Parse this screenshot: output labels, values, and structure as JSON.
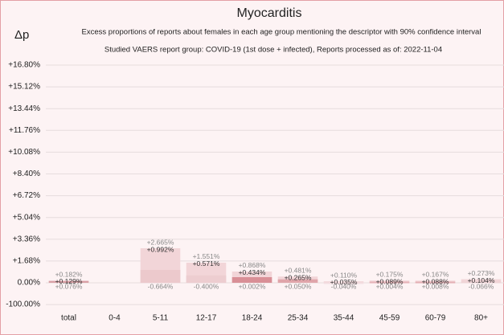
{
  "chart_data": {
    "type": "interval_bar",
    "title": "Myocarditis",
    "subtitle": "Excess proportions of reports about females in each age group mentioning the descriptor with 90% confidence interval",
    "subtitle2": "Studied VAERS report group: COVID-19 (1st dose + infected), Reports processed as of: 2022-11-04",
    "y_label": "Δp",
    "categories": [
      "total",
      "0-4",
      "5-11",
      "12-17",
      "18-24",
      "25-34",
      "35-44",
      "45-59",
      "60-79",
      "80+"
    ],
    "values": [
      0.129,
      null,
      0.992,
      0.571,
      0.434,
      0.265,
      0.035,
      0.089,
      0.088,
      0.104
    ],
    "value_labels": [
      "+0.129%",
      null,
      "+0.992%",
      "+0.571%",
      "+0.434%",
      "+0.265%",
      "+0.035%",
      "+0.089%",
      "+0.088%",
      "+0.104%"
    ],
    "upper": [
      0.182,
      null,
      2.665,
      1.551,
      0.868,
      0.481,
      0.11,
      0.175,
      0.167,
      0.273
    ],
    "upper_labels": [
      "+0.182%",
      null,
      "+2.665%",
      "+1.551%",
      "+0.868%",
      "+0.481%",
      "+0.110%",
      "+0.175%",
      "+0.167%",
      "+0.273%"
    ],
    "lower": [
      0.076,
      null,
      -0.664,
      -0.4,
      0.002,
      0.05,
      -0.04,
      0.004,
      0.008,
      -0.066
    ],
    "lower_labels": [
      "+0.076%",
      null,
      "-0.664%",
      "-0.400%",
      "+0.002%",
      "+0.050%",
      "-0.040%",
      "+0.004%",
      "+0.008%",
      "-0.066%"
    ],
    "colors": [
      "#d9a0a5",
      null,
      "#ecc9cc",
      "#edcdd0",
      "#d98f96",
      "#e0a5aa",
      "#f3dde0",
      "#e6b3b7",
      "#e4b0b5",
      "#f0d3d6"
    ],
    "interval_color": "#f2d5d8",
    "ylim": [
      -100,
      16.8
    ],
    "yticks": [
      {
        "value": -100,
        "label": "-100.00%"
      },
      {
        "value": 0,
        "label": "0.00%"
      },
      {
        "value": 1.68,
        "label": "+1.68%"
      },
      {
        "value": 3.36,
        "label": "+3.36%"
      },
      {
        "value": 5.04,
        "label": "+5.04%"
      },
      {
        "value": 6.72,
        "label": "+6.72%"
      },
      {
        "value": 8.4,
        "label": "+8.40%"
      },
      {
        "value": 10.08,
        "label": "+10.08%"
      },
      {
        "value": 11.76,
        "label": "+11.76%"
      },
      {
        "value": 13.44,
        "label": "+13.44%"
      },
      {
        "value": 15.12,
        "label": "+15.12%"
      },
      {
        "value": 16.8,
        "label": "+16.80%"
      }
    ],
    "grid": true
  }
}
